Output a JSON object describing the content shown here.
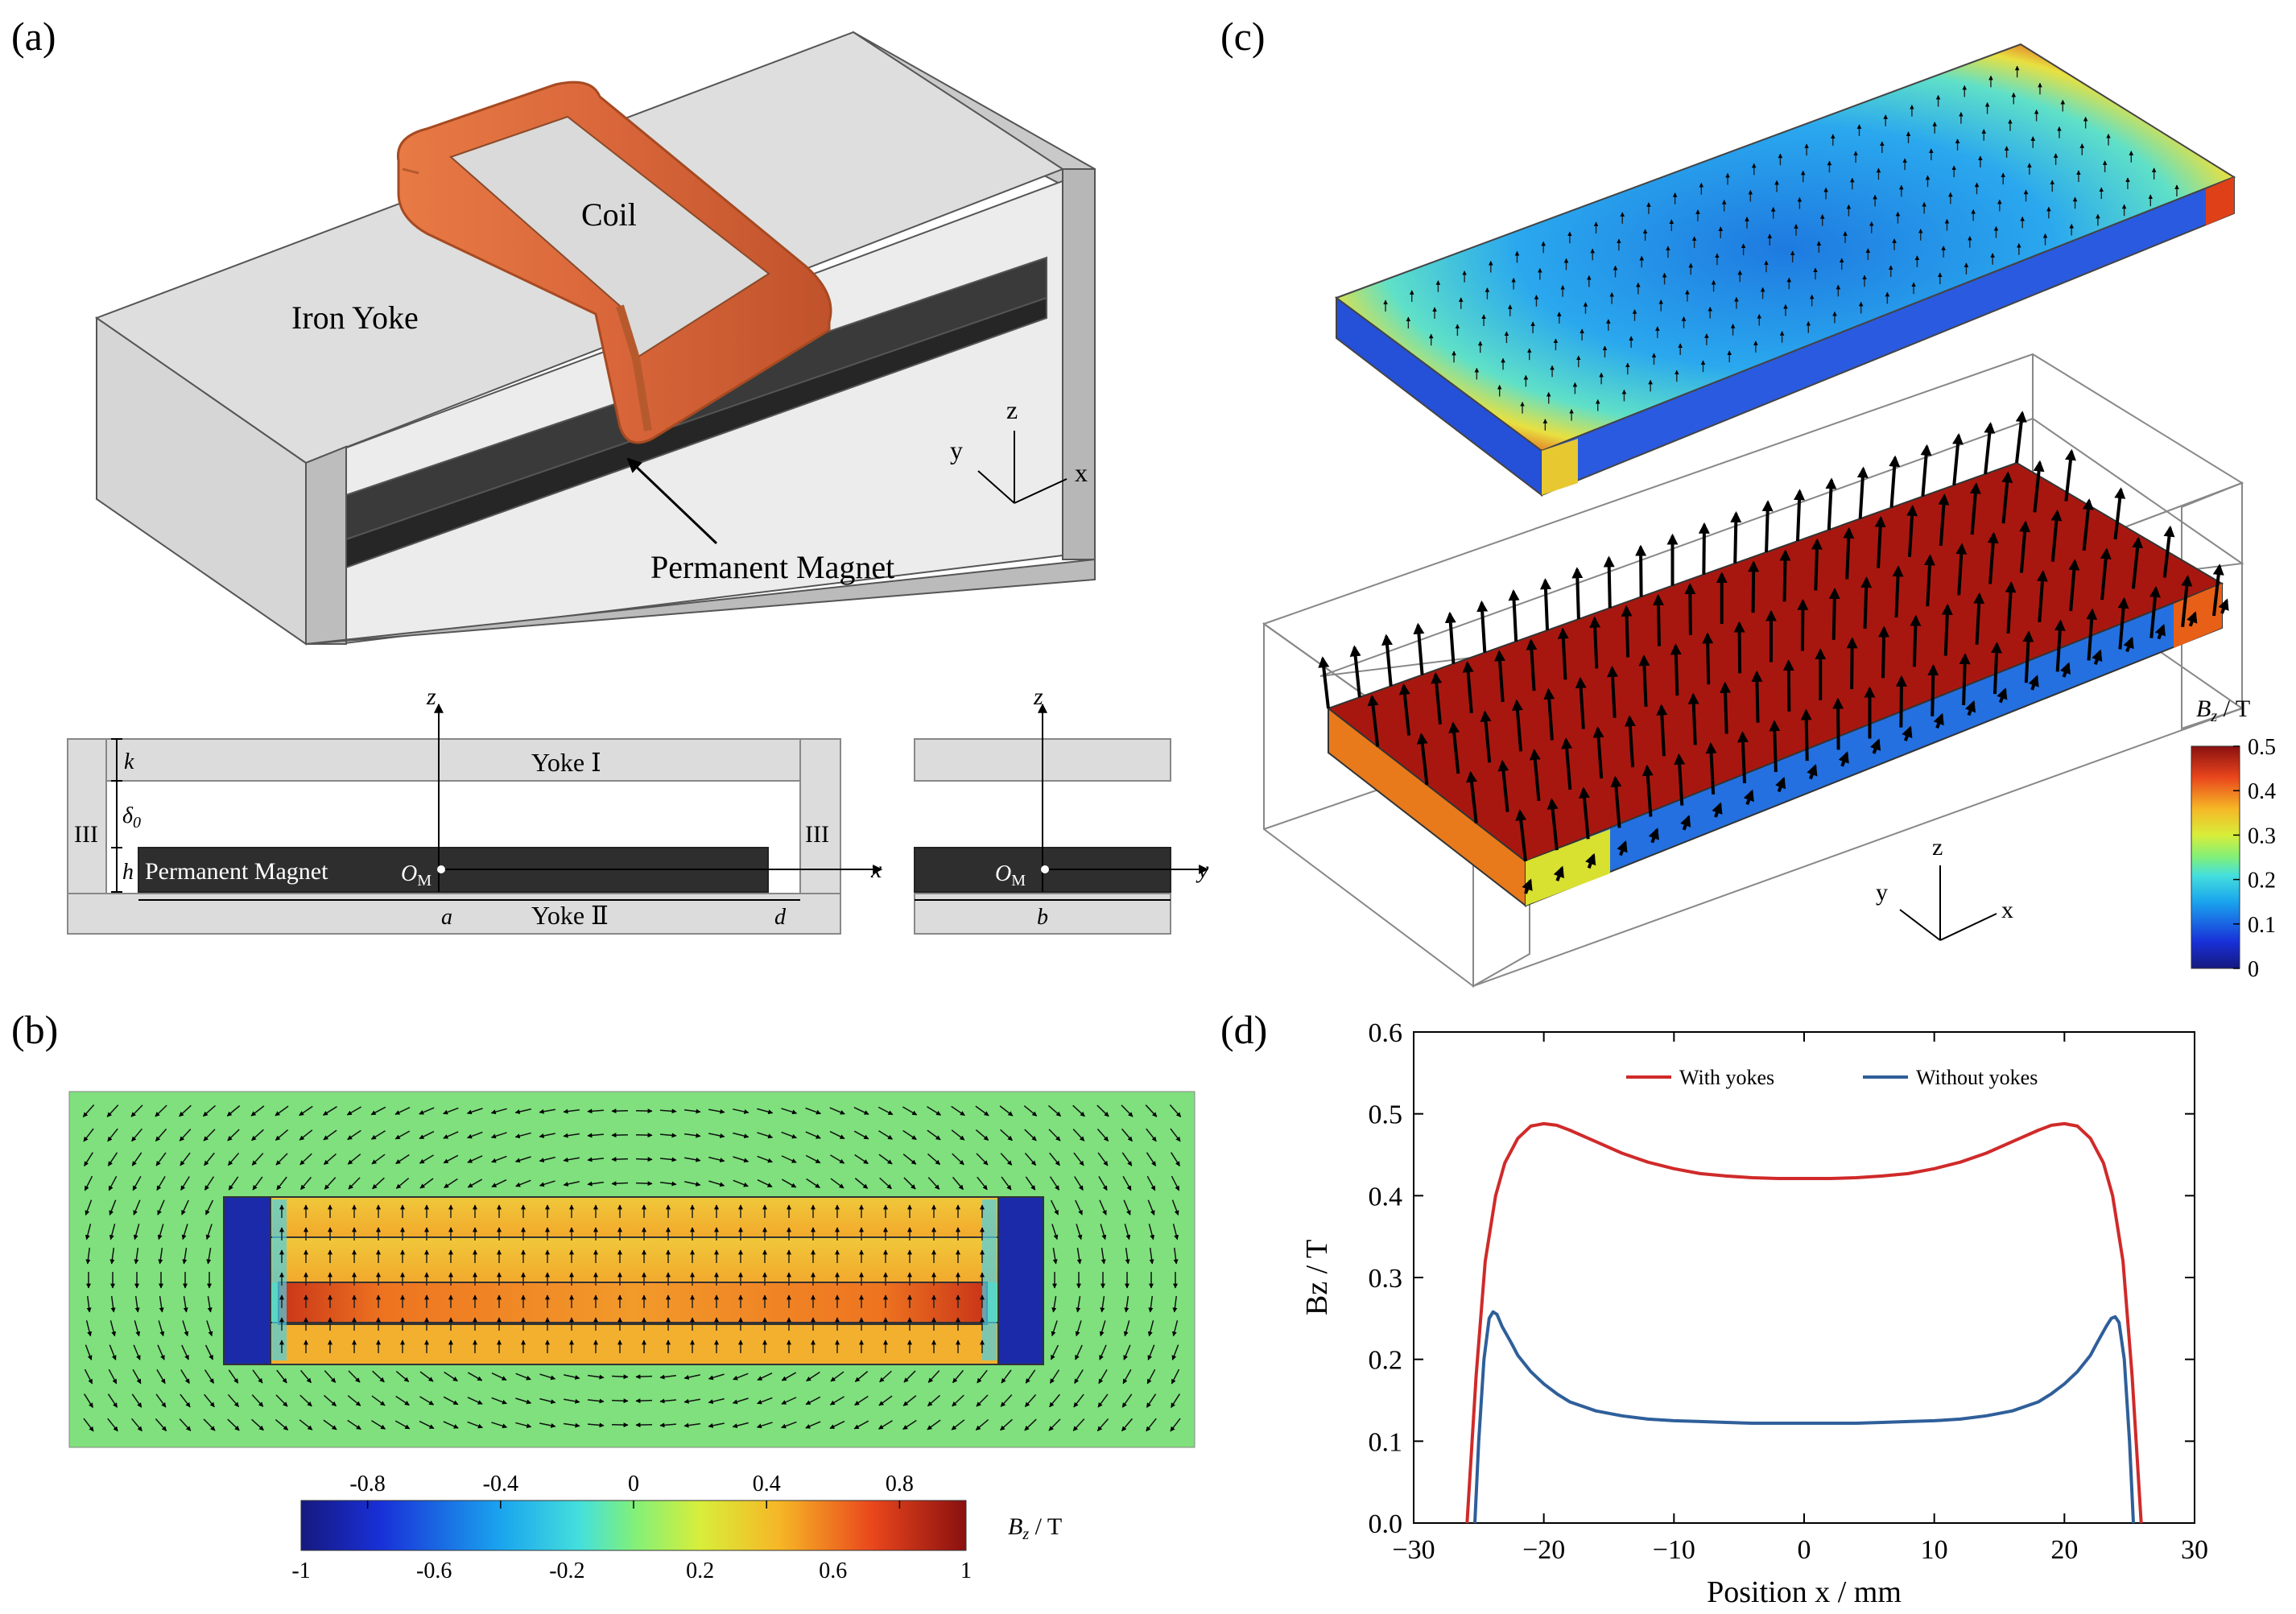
{
  "panel_a": {
    "label": "(a)",
    "coil_label": "Coil",
    "yoke_label": "Iron Yoke",
    "magnet_label": "Permanent Magnet",
    "axes": {
      "x": "x",
      "y": "y",
      "z": "z"
    },
    "section_labels": {
      "yoke1": "Yoke Ⅰ",
      "yoke2": "Yoke Ⅱ",
      "iii": "III",
      "k": "k",
      "delta": "δ",
      "delta_sub": "0",
      "h": "h",
      "a": "a",
      "d": "d",
      "b": "b",
      "pm": "Permanent Magnet",
      "om": "O",
      "om_sub": "M",
      "x": "x",
      "y": "y",
      "z": "z"
    }
  },
  "panel_b": {
    "label": "(b)",
    "colorbar_title_main": "B",
    "colorbar_title_sub": "z",
    "colorbar_title_unit": " / T",
    "ticks_top": [
      "-0.8",
      "-0.4",
      "0",
      "0.4",
      "0.8"
    ],
    "ticks_bottom": [
      "-1",
      "-0.6",
      "-0.2",
      "0.2",
      "0.6",
      "1"
    ]
  },
  "panel_c": {
    "label": "(c)",
    "colorbar_title_main": "B",
    "colorbar_title_sub": "z",
    "colorbar_title_unit": " / T",
    "ticks": [
      "0.5",
      "0.4",
      "0.3",
      "0.2",
      "0.1",
      "0"
    ],
    "axes": {
      "x": "x",
      "y": "y",
      "z": "z"
    }
  },
  "panel_d": {
    "label": "(d)",
    "chart_data": {
      "type": "line",
      "title": "",
      "xlabel": "Position x / mm",
      "ylabel": "Bz / T",
      "xlim": [
        -30,
        30
      ],
      "ylim": [
        0,
        0.6
      ],
      "xticks": [
        "−30",
        "−20",
        "−10",
        "0",
        "10",
        "20",
        "30"
      ],
      "yticks": [
        "0.0",
        "0.1",
        "0.2",
        "0.3",
        "0.4",
        "0.5",
        "0.6"
      ],
      "legend_position": "top-center",
      "series": [
        {
          "name": "With yokes",
          "color": "#d02a2a",
          "x": [
            -25.9,
            -25.2,
            -24.5,
            -23.7,
            -23,
            -22,
            -21,
            -20,
            -19,
            -18,
            -16,
            -14,
            -12,
            -10,
            -8,
            -6,
            -4,
            -2,
            0,
            2,
            4,
            6,
            8,
            10,
            12,
            14,
            16,
            18,
            19,
            20,
            21,
            22,
            23,
            23.7,
            24.5,
            25.2,
            25.9
          ],
          "y": [
            0,
            0.18,
            0.32,
            0.4,
            0.44,
            0.47,
            0.485,
            0.488,
            0.486,
            0.48,
            0.466,
            0.452,
            0.441,
            0.433,
            0.427,
            0.424,
            0.422,
            0.421,
            0.421,
            0.421,
            0.422,
            0.424,
            0.427,
            0.433,
            0.441,
            0.452,
            0.466,
            0.48,
            0.486,
            0.488,
            0.485,
            0.47,
            0.44,
            0.4,
            0.32,
            0.18,
            0
          ]
        },
        {
          "name": "Without yokes",
          "color": "#2f5f9a",
          "x": [
            -25.3,
            -25.0,
            -24.6,
            -24.2,
            -23.9,
            -23.6,
            -23.2,
            -22.5,
            -22,
            -21,
            -20,
            -19,
            -18,
            -16,
            -14,
            -12,
            -10,
            -8,
            -6,
            -4,
            -2,
            0,
            2,
            4,
            6,
            8,
            10,
            12,
            14,
            16,
            18,
            19,
            20,
            21,
            22,
            22.5,
            23.2,
            23.6,
            23.9,
            24.2,
            24.6,
            25.0,
            25.3
          ],
          "y": [
            0,
            0.1,
            0.2,
            0.25,
            0.258,
            0.255,
            0.24,
            0.22,
            0.205,
            0.185,
            0.17,
            0.158,
            0.148,
            0.137,
            0.131,
            0.127,
            0.125,
            0.124,
            0.123,
            0.122,
            0.122,
            0.122,
            0.122,
            0.122,
            0.123,
            0.124,
            0.125,
            0.127,
            0.131,
            0.137,
            0.148,
            0.158,
            0.17,
            0.185,
            0.205,
            0.22,
            0.24,
            0.25,
            0.252,
            0.245,
            0.2,
            0.1,
            0
          ]
        }
      ]
    }
  },
  "colors": {
    "coil": "#d86a3c",
    "yoke_light": "#dcdcdc",
    "magnet": "#2e2e2e",
    "field_bg": "#7be07a"
  }
}
